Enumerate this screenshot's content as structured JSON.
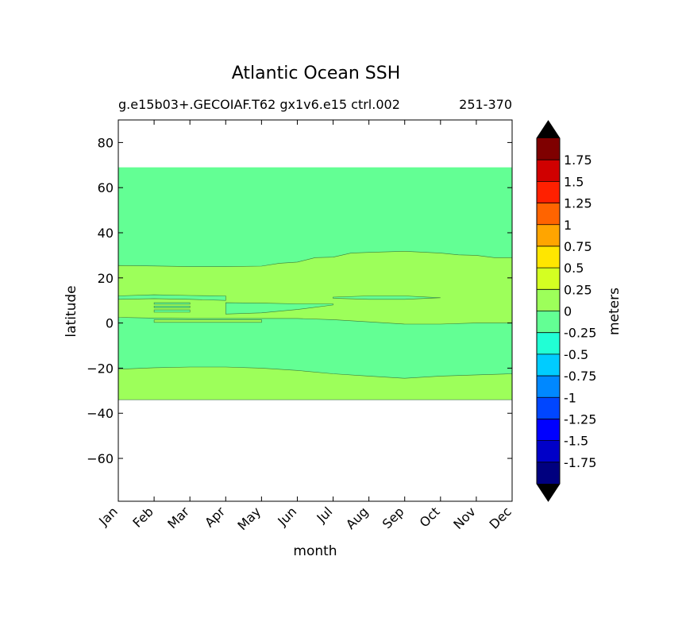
{
  "chart_data": {
    "type": "heatmap",
    "title": "Atlantic Ocean SSH",
    "subtitle_left": "g.e15b03+.GECOIAF.T62 gx1v6.e15 ctrl.002",
    "subtitle_right": "251-370",
    "xlabel": "month",
    "ylabel": "latitude",
    "x_categories": [
      "Jan",
      "Feb",
      "Mar",
      "Apr",
      "May",
      "Jun",
      "Jul",
      "Aug",
      "Sep",
      "Oct",
      "Nov",
      "Dec"
    ],
    "xlim": [
      0,
      11
    ],
    "ylim": [
      -79,
      90
    ],
    "y_ticks": [
      {
        "value": 80,
        "label": "80"
      },
      {
        "value": 60,
        "label": "60"
      },
      {
        "value": 40,
        "label": "40"
      },
      {
        "value": 20,
        "label": "20"
      },
      {
        "value": 0,
        "label": "0"
      },
      {
        "value": -20,
        "label": "−20"
      },
      {
        "value": -40,
        "label": "−40"
      },
      {
        "value": -60,
        "label": "−60"
      }
    ],
    "data_lat_range": [
      -34,
      69
    ],
    "colorbar": {
      "label": "meters",
      "levels": [
        "-1.75",
        "-1.5",
        "-1.25",
        "-1",
        "-0.75",
        "-0.5",
        "-0.25",
        "0",
        "0.25",
        "0.5",
        "0.75",
        "1",
        "1.25",
        "1.5",
        "1.75"
      ],
      "bin_colors": [
        "#00007f",
        "#0000c8",
        "#0000ff",
        "#0046ff",
        "#0088ff",
        "#00ccff",
        "#21ffd5",
        "#63ff94",
        "#9dff5a",
        "#d4ff22",
        "#ffe600",
        "#ffa500",
        "#ff6400",
        "#ff2000",
        "#d00000",
        "#7f0000"
      ],
      "over_color": "#000000",
      "under_color": "#000000"
    },
    "regions": {
      "background_color": "#63ff94",
      "positive_color": "#9dff5a",
      "upper_boundary": [
        {
          "x": 0,
          "y": 25.5
        },
        {
          "x": 1,
          "y": 25.3
        },
        {
          "x": 2,
          "y": 25
        },
        {
          "x": 3,
          "y": 25
        },
        {
          "x": 4,
          "y": 25.2
        },
        {
          "x": 4.5,
          "y": 26.5
        },
        {
          "x": 5,
          "y": 27
        },
        {
          "x": 5.5,
          "y": 29
        },
        {
          "x": 6,
          "y": 29.2
        },
        {
          "x": 6.5,
          "y": 31
        },
        {
          "x": 7,
          "y": 31.3
        },
        {
          "x": 8,
          "y": 31.8
        },
        {
          "x": 9,
          "y": 31
        },
        {
          "x": 9.5,
          "y": 30.2
        },
        {
          "x": 10,
          "y": 30
        },
        {
          "x": 10.5,
          "y": 29
        },
        {
          "x": 11,
          "y": 29
        }
      ],
      "equator_boundary": [
        {
          "x": 0,
          "y": 2.5
        },
        {
          "x": 1,
          "y": 2.2
        },
        {
          "x": 2,
          "y": 2
        },
        {
          "x": 3,
          "y": 2
        },
        {
          "x": 4,
          "y": 2
        },
        {
          "x": 5,
          "y": 2
        },
        {
          "x": 6,
          "y": 1.5
        },
        {
          "x": 7,
          "y": 0.5
        },
        {
          "x": 8,
          "y": -0.5
        },
        {
          "x": 9,
          "y": -0.5
        },
        {
          "x": 10,
          "y": 0
        },
        {
          "x": 11,
          "y": 0
        }
      ],
      "southern_boundary": [
        {
          "x": 0,
          "y": -20.5
        },
        {
          "x": 1,
          "y": -19.8
        },
        {
          "x": 2,
          "y": -19.5
        },
        {
          "x": 3,
          "y": -19.5
        },
        {
          "x": 4,
          "y": -20
        },
        {
          "x": 5,
          "y": -21
        },
        {
          "x": 6,
          "y": -22.5
        },
        {
          "x": 7,
          "y": -23.5
        },
        {
          "x": 8,
          "y": -24.5
        },
        {
          "x": 9,
          "y": -23.5
        },
        {
          "x": 10,
          "y": -23
        },
        {
          "x": 11,
          "y": -22.5
        }
      ],
      "background_bands": [
        [
          {
            "x": 0,
            "y": 12
          },
          {
            "x": 1,
            "y": 12.5
          },
          {
            "x": 2,
            "y": 12.2
          },
          {
            "x": 3,
            "y": 12
          },
          {
            "x": 3,
            "y": 10
          },
          {
            "x": 2,
            "y": 10.5
          },
          {
            "x": 1,
            "y": 10.8
          },
          {
            "x": 0,
            "y": 10.5
          }
        ],
        [
          {
            "x": 3,
            "y": 9
          },
          {
            "x": 4,
            "y": 8.8
          },
          {
            "x": 5,
            "y": 8.5
          },
          {
            "x": 6,
            "y": 8.5
          },
          {
            "x": 6,
            "y": 8
          },
          {
            "x": 5,
            "y": 6
          },
          {
            "x": 4,
            "y": 4.5
          },
          {
            "x": 3,
            "y": 4
          }
        ],
        [
          {
            "x": 1,
            "y": 9
          },
          {
            "x": 2,
            "y": 9
          },
          {
            "x": 2,
            "y": 8.3
          },
          {
            "x": 1,
            "y": 8.3
          }
        ],
        [
          {
            "x": 1,
            "y": 7.5
          },
          {
            "x": 2,
            "y": 7.5
          },
          {
            "x": 2,
            "y": 6.8
          },
          {
            "x": 1,
            "y": 6.8
          }
        ],
        [
          {
            "x": 1,
            "y": 5.8
          },
          {
            "x": 2,
            "y": 5.8
          },
          {
            "x": 2,
            "y": 4.8
          },
          {
            "x": 1,
            "y": 4.8
          }
        ],
        [
          {
            "x": 6,
            "y": 11.5
          },
          {
            "x": 7,
            "y": 12
          },
          {
            "x": 8,
            "y": 12
          },
          {
            "x": 9,
            "y": 11.2
          },
          {
            "x": 8,
            "y": 10.5
          },
          {
            "x": 7,
            "y": 10.5
          },
          {
            "x": 6,
            "y": 11
          }
        ]
      ],
      "positive_bands": [
        [
          {
            "x": 1,
            "y": 1.5
          },
          {
            "x": 4,
            "y": 1.5
          },
          {
            "x": 4,
            "y": 0.3
          },
          {
            "x": 1,
            "y": 0.3
          }
        ]
      ]
    }
  }
}
